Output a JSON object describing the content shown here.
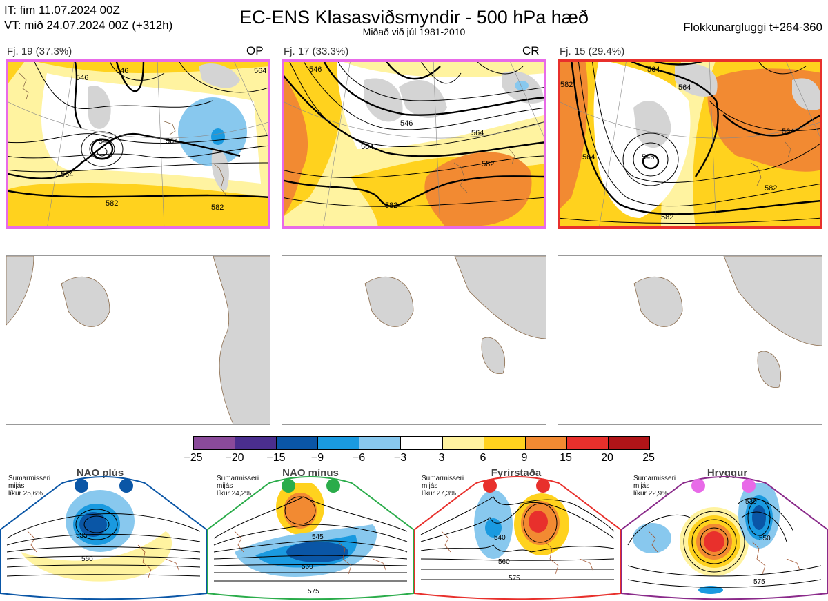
{
  "header": {
    "it_line": "IT: fim 11.07.2024 00Z",
    "vt_line": "VT: mið 24.07.2024 00Z  (+312h)",
    "title": "EC-ENS Klasasviðsmyndir - 500 hPa hæð",
    "subtitle": "Miðað við júl 1981-2010",
    "window": "Flokkunargluggi t+264-360"
  },
  "clusters": [
    {
      "label": "Fj. 19 (37.3%)",
      "tag": "OP",
      "border_color": "#e86ae8",
      "contours": [
        "546",
        "546",
        "546",
        "564",
        "564",
        "564",
        "582",
        "582"
      ]
    },
    {
      "label": "Fj. 17 (33.3%)",
      "tag": "CR",
      "border_color": "#e86ae8",
      "contours": [
        "546",
        "546",
        "564",
        "564",
        "582",
        "582"
      ]
    },
    {
      "label": "Fj. 15 (29.4%)",
      "tag": "",
      "border_color": "#e8302c",
      "contours": [
        "564",
        "564",
        "564",
        "546",
        "564",
        "582",
        "582",
        "582"
      ]
    }
  ],
  "colorbar": {
    "ticks": [
      "−25",
      "−20",
      "−15",
      "−9",
      "−6",
      "−3",
      "3",
      "6",
      "9",
      "15",
      "20",
      "25"
    ],
    "colors": [
      "#8a4a9a",
      "#4a2e8e",
      "#0a56a6",
      "#1a9ae0",
      "#88c8ee",
      "#ffffff",
      "#fff3a0",
      "#ffd21e",
      "#f28a32",
      "#e8302c",
      "#b01418"
    ]
  },
  "regimes": [
    {
      "title": "NAO plús",
      "note": [
        "Sumarmisseri",
        "mijás",
        "líkur 25,6%"
      ],
      "dot_color": "#0a56a6",
      "frame_color": "#0a56a6",
      "contours": [
        "535",
        "560"
      ]
    },
    {
      "title": "NAO mínus",
      "note": [
        "Sumarmisseri",
        "mijás",
        "líkur 24,2%"
      ],
      "dot_color": "#2aac4a",
      "frame_color": "#2aac4a",
      "contours": [
        "545",
        "560",
        "575"
      ]
    },
    {
      "title": "Fyrirstaða",
      "note": [
        "Sumarmisseri",
        "mijás",
        "líkur 27,3%"
      ],
      "dot_color": "#e8302c",
      "frame_color": "#e8302c",
      "contours": [
        "540",
        "560",
        "575"
      ]
    },
    {
      "title": "Hryggur",
      "note": [
        "Sumarmisseri",
        "mijás",
        "líkur 22,9%"
      ],
      "dot_color": "#e86ae8",
      "frame_color": "#8a2a8a",
      "contours": [
        "530",
        "550",
        "575"
      ]
    }
  ]
}
